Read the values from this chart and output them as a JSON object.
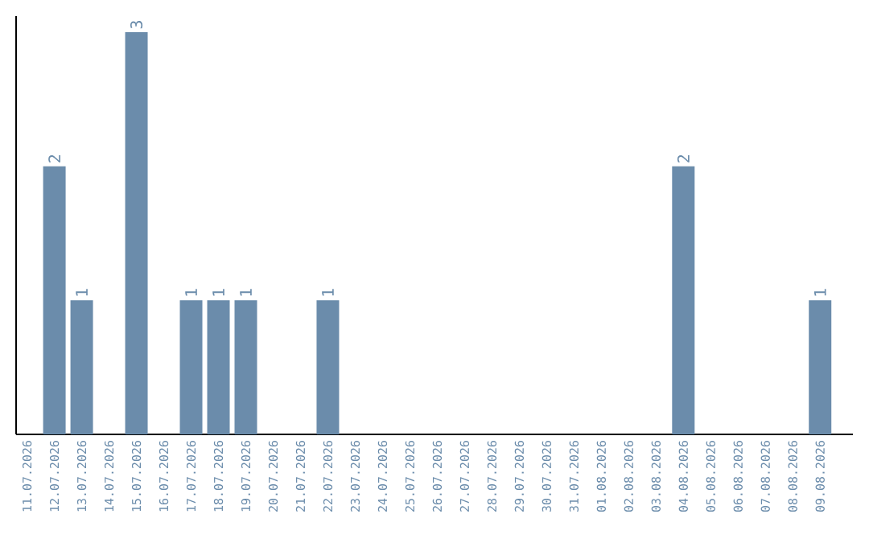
{
  "chart_data": {
    "type": "bar",
    "categories": [
      "11.07.2026",
      "12.07.2026",
      "13.07.2026",
      "14.07.2026",
      "15.07.2026",
      "16.07.2026",
      "17.07.2026",
      "18.07.2026",
      "19.07.2026",
      "20.07.2026",
      "21.07.2026",
      "22.07.2026",
      "23.07.2026",
      "24.07.2026",
      "25.07.2026",
      "26.07.2026",
      "27.07.2026",
      "28.07.2026",
      "29.07.2026",
      "30.07.2026",
      "31.07.2026",
      "01.08.2026",
      "02.08.2026",
      "03.08.2026",
      "04.08.2026",
      "05.08.2026",
      "06.08.2026",
      "07.08.2026",
      "08.08.2026",
      "09.08.2026"
    ],
    "values": [
      0,
      2,
      1,
      0,
      3,
      0,
      1,
      1,
      1,
      0,
      0,
      1,
      0,
      0,
      0,
      0,
      0,
      0,
      0,
      0,
      0,
      0,
      0,
      0,
      2,
      0,
      0,
      0,
      0,
      1
    ],
    "value_labels": [
      null,
      "2",
      "1",
      null,
      "3",
      null,
      "1",
      "1",
      "1",
      null,
      null,
      "1",
      null,
      null,
      null,
      null,
      null,
      null,
      null,
      null,
      null,
      null,
      null,
      null,
      "2",
      null,
      null,
      null,
      null,
      "1"
    ],
    "color": "#6b8cab"
  }
}
